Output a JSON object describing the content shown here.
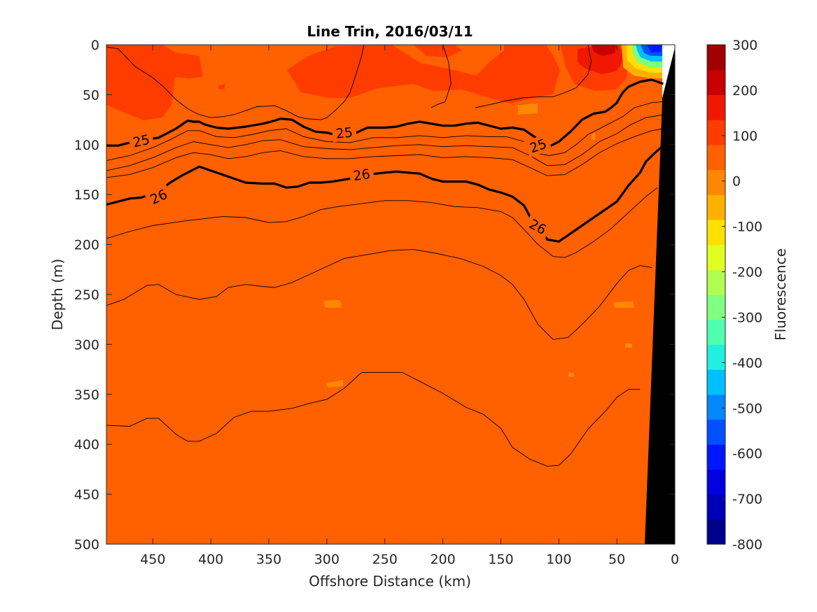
{
  "chart_data": {
    "type": "contour",
    "title": "Line Trin, 2016/03/11",
    "xlabel": "Offshore Distance (km)",
    "ylabel": "Depth (m)",
    "xlim": [
      490,
      0
    ],
    "ylim": [
      0,
      500
    ],
    "x_reversed": true,
    "y_reversed": true,
    "x_ticks": [
      "450",
      "400",
      "350",
      "300",
      "250",
      "200",
      "150",
      "100",
      "50",
      "0"
    ],
    "y_ticks": [
      "0",
      "50",
      "100",
      "150",
      "200",
      "250",
      "300",
      "350",
      "400",
      "450",
      "500"
    ],
    "colorbar": {
      "label": "Fluorescence",
      "range": [
        -800,
        300
      ],
      "ticks": [
        "300",
        "200",
        "100",
        "0",
        "-100",
        "-200",
        "-300",
        "-400",
        "-500",
        "-600",
        "-700",
        "-800"
      ],
      "colors": [
        "#00008f",
        "#0000b8",
        "#0000e0",
        "#0018ff",
        "#0050ff",
        "#0088ff",
        "#00c0ff",
        "#20f0e0",
        "#50ffb0",
        "#80ff80",
        "#b0ff50",
        "#e0ff20",
        "#ffe000",
        "#ffb000",
        "#ff8800",
        "#ff6000",
        "#ff3c00",
        "#f01800",
        "#c80000",
        "#a00000"
      ]
    },
    "background_field": {
      "value": 80,
      "color": "#ff6000"
    },
    "isopycnals": [
      {
        "level": "25",
        "bold": true,
        "points": [
          [
            490,
            101
          ],
          [
            480,
            101
          ],
          [
            470,
            98
          ],
          [
            460,
            96
          ],
          [
            445,
            93
          ],
          [
            430,
            84
          ],
          [
            420,
            76
          ],
          [
            415,
            77
          ],
          [
            410,
            77
          ],
          [
            405,
            80
          ],
          [
            395,
            83
          ],
          [
            385,
            84
          ],
          [
            370,
            82
          ],
          [
            355,
            79
          ],
          [
            345,
            76
          ],
          [
            340,
            74
          ],
          [
            330,
            75
          ],
          [
            320,
            82
          ],
          [
            310,
            87
          ],
          [
            300,
            88
          ],
          [
            290,
            91
          ],
          [
            280,
            91
          ],
          [
            265,
            83
          ],
          [
            250,
            83
          ],
          [
            240,
            82
          ],
          [
            230,
            79
          ],
          [
            220,
            77
          ],
          [
            210,
            79
          ],
          [
            200,
            81
          ],
          [
            190,
            81
          ],
          [
            180,
            79
          ],
          [
            170,
            78
          ],
          [
            160,
            81
          ],
          [
            150,
            84
          ],
          [
            140,
            83
          ],
          [
            130,
            85
          ],
          [
            120,
            93
          ],
          [
            110,
            103
          ],
          [
            100,
            97
          ],
          [
            90,
            87
          ],
          [
            80,
            75
          ],
          [
            70,
            69
          ],
          [
            60,
            67
          ],
          [
            55,
            63
          ],
          [
            50,
            58
          ],
          [
            45,
            48
          ],
          [
            40,
            42
          ],
          [
            30,
            37
          ],
          [
            20,
            35
          ],
          [
            10,
            39
          ]
        ],
        "labels": [
          {
            "text": "25",
            "x": 460,
            "y": 96,
            "angle": -12
          },
          {
            "text": "25",
            "x": 285,
            "y": 88,
            "angle": -6
          },
          {
            "text": "25",
            "x": 118,
            "y": 101,
            "angle": -20
          }
        ]
      },
      {
        "level": "26",
        "bold": true,
        "points": [
          [
            490,
            160
          ],
          [
            480,
            157
          ],
          [
            470,
            154
          ],
          [
            460,
            153
          ],
          [
            445,
            147
          ],
          [
            435,
            138
          ],
          [
            425,
            131
          ],
          [
            415,
            125
          ],
          [
            410,
            122
          ],
          [
            400,
            126
          ],
          [
            390,
            130
          ],
          [
            380,
            134
          ],
          [
            370,
            138
          ],
          [
            355,
            139
          ],
          [
            345,
            139
          ],
          [
            335,
            143
          ],
          [
            325,
            142
          ],
          [
            315,
            138
          ],
          [
            305,
            138
          ],
          [
            295,
            137
          ],
          [
            280,
            134
          ],
          [
            265,
            130
          ],
          [
            250,
            128
          ],
          [
            240,
            127
          ],
          [
            230,
            128
          ],
          [
            220,
            129
          ],
          [
            210,
            134
          ],
          [
            200,
            137
          ],
          [
            190,
            137
          ],
          [
            180,
            137
          ],
          [
            170,
            140
          ],
          [
            160,
            145
          ],
          [
            150,
            148
          ],
          [
            140,
            152
          ],
          [
            130,
            161
          ],
          [
            125,
            172
          ],
          [
            118,
            180
          ],
          [
            110,
            195
          ],
          [
            100,
            197
          ],
          [
            90,
            189
          ],
          [
            80,
            181
          ],
          [
            65,
            169
          ],
          [
            50,
            157
          ],
          [
            40,
            141
          ],
          [
            30,
            128
          ],
          [
            25,
            117
          ],
          [
            18,
            109
          ],
          [
            12,
            103
          ],
          [
            6,
            100
          ]
        ],
        "labels": [
          {
            "text": "26",
            "x": 445,
            "y": 152,
            "angle": -25
          },
          {
            "text": "26",
            "x": 270,
            "y": 130,
            "angle": -8
          },
          {
            "text": "26",
            "x": 118,
            "y": 182,
            "angle": 28
          }
        ]
      }
    ],
    "thin_contours": [
      [
        [
          490,
          116
        ],
        [
          470,
          111
        ],
        [
          450,
          103
        ],
        [
          435,
          95
        ],
        [
          420,
          86
        ],
        [
          410,
          86
        ],
        [
          395,
          92
        ],
        [
          380,
          93
        ],
        [
          365,
          90
        ],
        [
          350,
          86
        ],
        [
          335,
          84
        ],
        [
          320,
          92
        ],
        [
          300,
          97
        ],
        [
          280,
          98
        ],
        [
          260,
          93
        ],
        [
          240,
          93
        ],
        [
          220,
          91
        ],
        [
          200,
          93
        ],
        [
          180,
          91
        ],
        [
          160,
          92
        ],
        [
          145,
          92
        ],
        [
          130,
          97
        ],
        [
          118,
          109
        ],
        [
          108,
          111
        ],
        [
          95,
          108
        ],
        [
          85,
          100
        ],
        [
          75,
          90
        ],
        [
          60,
          81
        ],
        [
          45,
          72
        ],
        [
          35,
          63
        ],
        [
          20,
          58
        ],
        [
          10,
          57
        ]
      ],
      [
        [
          490,
          126
        ],
        [
          470,
          121
        ],
        [
          450,
          113
        ],
        [
          430,
          103
        ],
        [
          415,
          97
        ],
        [
          400,
          100
        ],
        [
          385,
          103
        ],
        [
          370,
          100
        ],
        [
          355,
          96
        ],
        [
          340,
          95
        ],
        [
          320,
          102
        ],
        [
          300,
          104
        ],
        [
          280,
          105
        ],
        [
          260,
          103
        ],
        [
          240,
          101
        ],
        [
          220,
          100
        ],
        [
          200,
          102
        ],
        [
          180,
          101
        ],
        [
          160,
          102
        ],
        [
          140,
          103
        ],
        [
          125,
          111
        ],
        [
          110,
          121
        ],
        [
          95,
          120
        ],
        [
          80,
          110
        ],
        [
          65,
          97
        ],
        [
          50,
          89
        ],
        [
          38,
          80
        ],
        [
          25,
          73
        ],
        [
          10,
          70
        ]
      ],
      [
        [
          490,
          133
        ],
        [
          470,
          130
        ],
        [
          450,
          123
        ],
        [
          430,
          113
        ],
        [
          415,
          108
        ],
        [
          400,
          110
        ],
        [
          385,
          114
        ],
        [
          370,
          112
        ],
        [
          355,
          108
        ],
        [
          340,
          106
        ],
        [
          320,
          112
        ],
        [
          300,
          114
        ],
        [
          280,
          114
        ],
        [
          260,
          112
        ],
        [
          240,
          111
        ],
        [
          220,
          110
        ],
        [
          200,
          113
        ],
        [
          180,
          112
        ],
        [
          160,
          113
        ],
        [
          140,
          115
        ],
        [
          125,
          123
        ],
        [
          110,
          131
        ],
        [
          95,
          130
        ],
        [
          80,
          120
        ],
        [
          65,
          108
        ],
        [
          50,
          99
        ],
        [
          35,
          92
        ],
        [
          20,
          86
        ],
        [
          10,
          84
        ]
      ],
      [
        [
          490,
          194
        ],
        [
          470,
          187
        ],
        [
          450,
          181
        ],
        [
          420,
          176
        ],
        [
          390,
          172
        ],
        [
          370,
          173
        ],
        [
          350,
          178
        ],
        [
          335,
          177
        ],
        [
          320,
          172
        ],
        [
          305,
          165
        ],
        [
          290,
          162
        ],
        [
          270,
          159
        ],
        [
          250,
          156
        ],
        [
          230,
          156
        ],
        [
          210,
          158
        ],
        [
          190,
          162
        ],
        [
          170,
          163
        ],
        [
          150,
          167
        ],
        [
          140,
          173
        ],
        [
          130,
          185
        ],
        [
          118,
          200
        ],
        [
          105,
          212
        ],
        [
          95,
          213
        ],
        [
          85,
          208
        ],
        [
          70,
          197
        ],
        [
          55,
          184
        ],
        [
          40,
          168
        ],
        [
          25,
          152
        ],
        [
          15,
          143
        ]
      ],
      [
        [
          490,
          261
        ],
        [
          475,
          255
        ],
        [
          455,
          241
        ],
        [
          445,
          240
        ],
        [
          430,
          250
        ],
        [
          410,
          255
        ],
        [
          395,
          252
        ],
        [
          385,
          243
        ],
        [
          370,
          240
        ],
        [
          355,
          242
        ],
        [
          345,
          243
        ],
        [
          330,
          238
        ],
        [
          315,
          230
        ],
        [
          300,
          222
        ],
        [
          285,
          214
        ],
        [
          265,
          210
        ],
        [
          245,
          206
        ],
        [
          225,
          205
        ],
        [
          205,
          209
        ],
        [
          185,
          214
        ],
        [
          165,
          222
        ],
        [
          150,
          231
        ],
        [
          140,
          240
        ],
        [
          130,
          255
        ],
        [
          118,
          280
        ],
        [
          105,
          295
        ],
        [
          92,
          293
        ],
        [
          80,
          280
        ],
        [
          65,
          262
        ],
        [
          50,
          239
        ],
        [
          40,
          226
        ],
        [
          30,
          221
        ],
        [
          20,
          223
        ]
      ],
      [
        [
          490,
          381
        ],
        [
          470,
          382
        ],
        [
          455,
          374
        ],
        [
          445,
          374
        ],
        [
          430,
          390
        ],
        [
          420,
          397
        ],
        [
          410,
          397
        ],
        [
          395,
          389
        ],
        [
          380,
          373
        ],
        [
          365,
          367
        ],
        [
          350,
          367
        ],
        [
          330,
          364
        ],
        [
          315,
          359
        ],
        [
          300,
          355
        ],
        [
          285,
          344
        ],
        [
          270,
          328
        ],
        [
          255,
          328
        ],
        [
          235,
          328
        ],
        [
          220,
          337
        ],
        [
          200,
          349
        ],
        [
          180,
          363
        ],
        [
          165,
          370
        ],
        [
          150,
          384
        ],
        [
          140,
          403
        ],
        [
          125,
          415
        ],
        [
          110,
          422
        ],
        [
          100,
          421
        ],
        [
          90,
          410
        ],
        [
          75,
          385
        ],
        [
          60,
          367
        ],
        [
          50,
          353
        ],
        [
          40,
          345
        ],
        [
          30,
          345
        ]
      ],
      [
        [
          490,
          2
        ],
        [
          480,
          4
        ],
        [
          465,
          22
        ],
        [
          450,
          33
        ],
        [
          440,
          43
        ],
        [
          430,
          55
        ],
        [
          420,
          64
        ],
        [
          410,
          70
        ],
        [
          400,
          73
        ],
        [
          390,
          72
        ],
        [
          380,
          70
        ],
        [
          370,
          66
        ],
        [
          360,
          62
        ],
        [
          345,
          61
        ],
        [
          335,
          66
        ],
        [
          325,
          72
        ],
        [
          318,
          74
        ],
        [
          305,
          75
        ],
        [
          300,
          73
        ],
        [
          292,
          65
        ],
        [
          285,
          57
        ],
        [
          280,
          48
        ],
        [
          275,
          30
        ],
        [
          270,
          11
        ],
        [
          268,
          0
        ]
      ],
      [
        [
          200,
          0
        ],
        [
          195,
          18
        ],
        [
          193,
          39
        ],
        [
          198,
          57
        ],
        [
          205,
          60
        ],
        [
          210,
          63
        ]
      ],
      [
        [
          75,
          0
        ],
        [
          72,
          17
        ],
        [
          75,
          30
        ],
        [
          85,
          43
        ],
        [
          95,
          48
        ],
        [
          105,
          52
        ],
        [
          115,
          52
        ],
        [
          130,
          53
        ],
        [
          145,
          56
        ],
        [
          160,
          60
        ],
        [
          172,
          63
        ]
      ]
    ],
    "warm_patches": "Surface layer 0-70 m shows patches of values ~150 (red) over a background of ~80 (orange)",
    "hotspot": "Near-shore surface feature around 20-60 km, 0-25 m with values from -500 to 300"
  }
}
